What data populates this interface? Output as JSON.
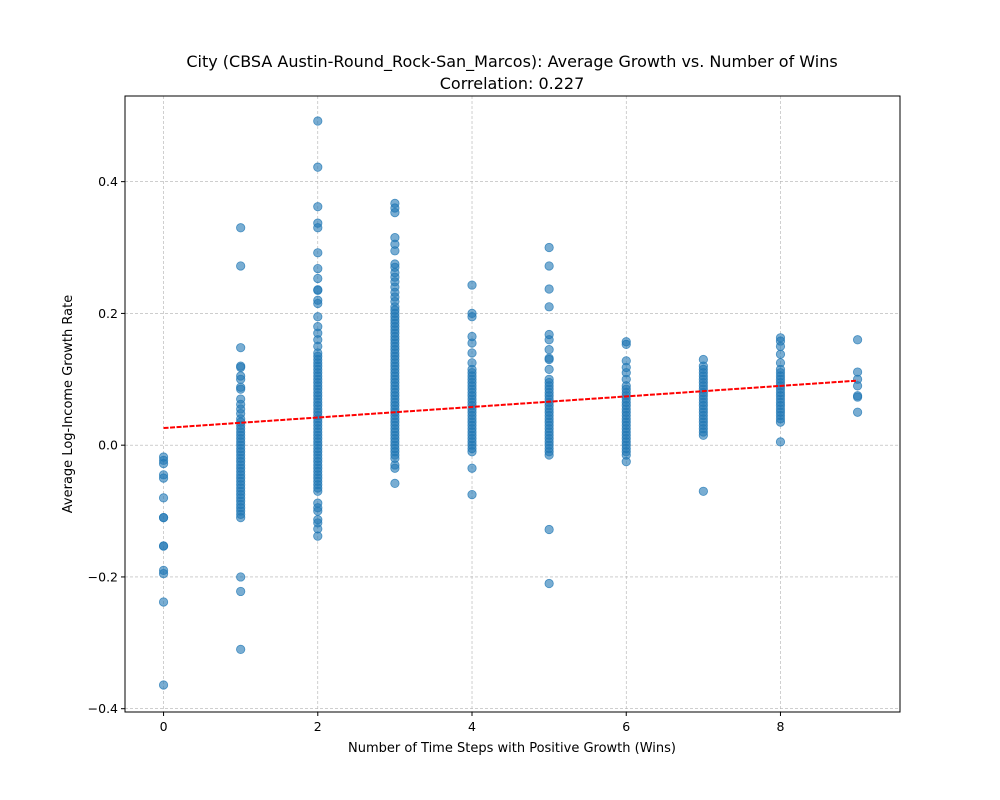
{
  "chart_data": {
    "type": "scatter",
    "title": "City (CBSA Austin-Round_Rock-San_Marcos): Average Growth vs. Number of Wins",
    "subtitle": "Correlation: 0.227",
    "xlabel": "Number of Time Steps with Positive Growth (Wins)",
    "ylabel": "Average Log-Income Growth Rate",
    "xlim": [
      -0.5,
      9.55
    ],
    "ylim": [
      -0.405,
      0.53
    ],
    "xticks": [
      0,
      2,
      4,
      6,
      8
    ],
    "xtick_labels": [
      "0",
      "2",
      "4",
      "6",
      "8"
    ],
    "yticks": [
      -0.4,
      -0.2,
      0.0,
      0.2,
      0.4
    ],
    "ytick_labels": [
      "−0.4",
      "−0.2",
      "0.0",
      "0.2",
      "0.4"
    ],
    "grid": true,
    "point_color": "#1f77b4",
    "point_alpha": 0.6,
    "trendline": {
      "color": "#ff0000",
      "style": "dashed",
      "x0": 0,
      "y0": 0.026,
      "x1": 9,
      "y1": 0.098
    },
    "columns": [
      {
        "x": 0,
        "y": [
          -0.018,
          -0.023,
          -0.028,
          -0.045,
          -0.05,
          -0.08,
          -0.11,
          -0.11,
          -0.153,
          -0.153,
          -0.19,
          -0.195,
          -0.238,
          -0.364
        ]
      },
      {
        "x": 1,
        "y": [
          0.33,
          0.272,
          0.148,
          0.12,
          0.118,
          0.105,
          0.1,
          0.088,
          0.085,
          0.07,
          0.062,
          0.055,
          0.048,
          0.04,
          0.035,
          0.03,
          0.025,
          0.02,
          0.015,
          0.01,
          0.005,
          0.0,
          -0.005,
          -0.01,
          -0.015,
          -0.02,
          -0.025,
          -0.03,
          -0.035,
          -0.04,
          -0.045,
          -0.05,
          -0.055,
          -0.06,
          -0.065,
          -0.07,
          -0.075,
          -0.08,
          -0.085,
          -0.09,
          -0.095,
          -0.1,
          -0.105,
          -0.11,
          -0.2,
          -0.222,
          -0.31
        ]
      },
      {
        "x": 2,
        "y": [
          0.492,
          0.422,
          0.362,
          0.337,
          0.33,
          0.292,
          0.268,
          0.253,
          0.236,
          0.235,
          0.22,
          0.215,
          0.195,
          0.18,
          0.17,
          0.16,
          0.15,
          0.14,
          0.135,
          0.13,
          0.125,
          0.12,
          0.115,
          0.11,
          0.105,
          0.1,
          0.095,
          0.09,
          0.085,
          0.08,
          0.075,
          0.07,
          0.065,
          0.06,
          0.055,
          0.05,
          0.045,
          0.04,
          0.035,
          0.03,
          0.025,
          0.02,
          0.015,
          0.01,
          0.005,
          0.0,
          -0.005,
          -0.01,
          -0.015,
          -0.02,
          -0.025,
          -0.03,
          -0.035,
          -0.04,
          -0.045,
          -0.05,
          -0.055,
          -0.06,
          -0.065,
          -0.07,
          -0.088,
          -0.095,
          -0.1,
          -0.113,
          -0.118,
          -0.127,
          -0.138
        ]
      },
      {
        "x": 3,
        "y": [
          0.367,
          0.36,
          0.353,
          0.315,
          0.305,
          0.295,
          0.275,
          0.27,
          0.262,
          0.255,
          0.248,
          0.24,
          0.232,
          0.225,
          0.218,
          0.21,
          0.205,
          0.2,
          0.195,
          0.19,
          0.185,
          0.18,
          0.175,
          0.17,
          0.165,
          0.16,
          0.155,
          0.15,
          0.145,
          0.14,
          0.135,
          0.13,
          0.125,
          0.12,
          0.115,
          0.11,
          0.105,
          0.1,
          0.095,
          0.09,
          0.085,
          0.08,
          0.075,
          0.07,
          0.065,
          0.06,
          0.055,
          0.05,
          0.045,
          0.04,
          0.035,
          0.03,
          0.025,
          0.02,
          0.015,
          0.01,
          0.005,
          0.0,
          -0.005,
          -0.01,
          -0.015,
          -0.02,
          -0.03,
          -0.035,
          -0.058
        ]
      },
      {
        "x": 4,
        "y": [
          0.243,
          0.2,
          0.195,
          0.165,
          0.155,
          0.14,
          0.125,
          0.115,
          0.11,
          0.105,
          0.1,
          0.095,
          0.09,
          0.085,
          0.08,
          0.075,
          0.07,
          0.065,
          0.06,
          0.055,
          0.05,
          0.045,
          0.04,
          0.035,
          0.03,
          0.025,
          0.02,
          0.015,
          0.01,
          0.005,
          0.0,
          -0.005,
          -0.01,
          -0.035,
          -0.075
        ]
      },
      {
        "x": 5,
        "y": [
          0.3,
          0.272,
          0.237,
          0.21,
          0.168,
          0.16,
          0.145,
          0.132,
          0.13,
          0.115,
          0.1,
          0.095,
          0.09,
          0.085,
          0.08,
          0.075,
          0.07,
          0.065,
          0.06,
          0.055,
          0.05,
          0.045,
          0.04,
          0.035,
          0.03,
          0.025,
          0.02,
          0.015,
          0.01,
          0.005,
          0.0,
          -0.005,
          -0.01,
          -0.015,
          -0.128,
          -0.21
        ]
      },
      {
        "x": 6,
        "y": [
          0.157,
          0.153,
          0.128,
          0.118,
          0.11,
          0.1,
          0.09,
          0.085,
          0.08,
          0.075,
          0.07,
          0.065,
          0.06,
          0.055,
          0.05,
          0.045,
          0.04,
          0.035,
          0.03,
          0.025,
          0.02,
          0.015,
          0.01,
          0.005,
          0.0,
          -0.005,
          -0.01,
          -0.015,
          -0.025
        ]
      },
      {
        "x": 7,
        "y": [
          0.13,
          0.12,
          0.115,
          0.11,
          0.105,
          0.1,
          0.095,
          0.09,
          0.085,
          0.08,
          0.075,
          0.07,
          0.065,
          0.06,
          0.055,
          0.05,
          0.045,
          0.04,
          0.035,
          0.03,
          0.025,
          0.02,
          0.015,
          -0.07
        ]
      },
      {
        "x": 8,
        "y": [
          0.163,
          0.158,
          0.15,
          0.138,
          0.125,
          0.115,
          0.11,
          0.105,
          0.1,
          0.095,
          0.09,
          0.085,
          0.08,
          0.075,
          0.07,
          0.065,
          0.06,
          0.055,
          0.05,
          0.045,
          0.04,
          0.035,
          0.005
        ]
      },
      {
        "x": 9,
        "y": [
          0.16,
          0.111,
          0.1,
          0.09,
          0.075,
          0.073,
          0.05
        ]
      }
    ]
  }
}
